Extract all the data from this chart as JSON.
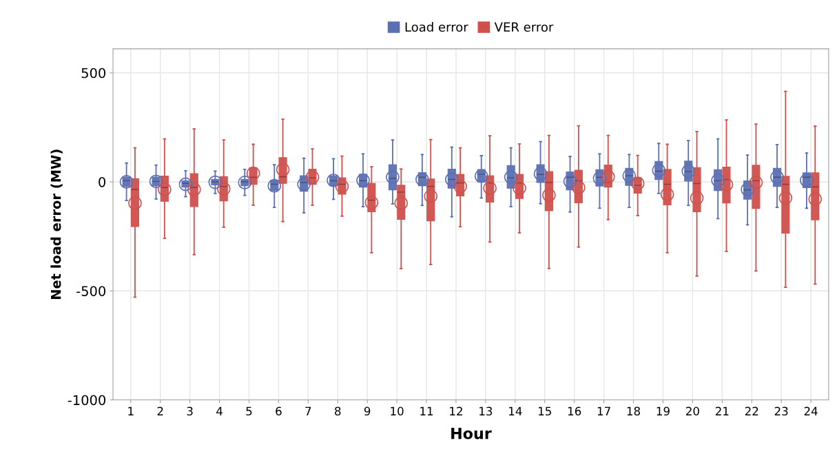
{
  "chart_data": {
    "type": "box",
    "xlabel": "Hour",
    "ylabel": "Net load error (MW)",
    "categories": [
      "1",
      "2",
      "3",
      "4",
      "5",
      "6",
      "7",
      "8",
      "9",
      "10",
      "11",
      "12",
      "13",
      "14",
      "15",
      "16",
      "17",
      "18",
      "19",
      "20",
      "21",
      "22",
      "23",
      "24"
    ],
    "ylim": [
      -1000,
      610
    ],
    "yticks": [
      -1000,
      -500,
      0,
      500
    ],
    "grid": true,
    "legend": "top",
    "series": [
      {
        "name": "Load error",
        "color": "#5b6fb3",
        "boxes": [
          {
            "low": -86,
            "q1": -21,
            "median": 5,
            "q3": 21,
            "high": 86,
            "mean": 0
          },
          {
            "low": -79,
            "q1": -18,
            "median": 2,
            "q3": 21,
            "high": 77,
            "mean": 2
          },
          {
            "low": -68,
            "q1": -24,
            "median": -7,
            "q3": 5,
            "high": 51,
            "mean": -11
          },
          {
            "low": -53,
            "q1": -14,
            "median": 0,
            "q3": 11,
            "high": 49,
            "mean": -2
          },
          {
            "low": -62,
            "q1": -18,
            "median": 0,
            "q3": 11,
            "high": 57,
            "mean": -3
          },
          {
            "low": -117,
            "q1": -39,
            "median": -11,
            "q3": 7,
            "high": 78,
            "mean": -18
          },
          {
            "low": -142,
            "q1": -43,
            "median": -3,
            "q3": 28,
            "high": 108,
            "mean": -11
          },
          {
            "low": -80,
            "q1": -18,
            "median": 5,
            "q3": 28,
            "high": 106,
            "mean": 7
          },
          {
            "low": -114,
            "q1": -24,
            "median": 5,
            "q3": 35,
            "high": 128,
            "mean": 7
          },
          {
            "low": -101,
            "q1": -37,
            "median": 16,
            "q3": 78,
            "high": 192,
            "mean": 21
          },
          {
            "low": -108,
            "q1": -18,
            "median": 21,
            "q3": 42,
            "high": 125,
            "mean": 11
          },
          {
            "low": -160,
            "q1": -29,
            "median": 11,
            "q3": 58,
            "high": 159,
            "mean": 11
          },
          {
            "low": -74,
            "q1": 0,
            "median": 35,
            "q3": 56,
            "high": 120,
            "mean": 26
          },
          {
            "low": -114,
            "q1": -29,
            "median": 19,
            "q3": 74,
            "high": 156,
            "mean": 21
          },
          {
            "low": -100,
            "q1": -3,
            "median": 34,
            "q3": 78,
            "high": 184,
            "mean": 37
          },
          {
            "low": -138,
            "q1": -37,
            "median": 21,
            "q3": 45,
            "high": 116,
            "mean": 2
          },
          {
            "low": -121,
            "q1": -19,
            "median": 21,
            "q3": 55,
            "high": 128,
            "mean": 16
          },
          {
            "low": -117,
            "q1": -16,
            "median": 28,
            "q3": 62,
            "high": 125,
            "mean": 28
          },
          {
            "low": -53,
            "q1": 11,
            "median": 49,
            "q3": 93,
            "high": 176,
            "mean": 53
          },
          {
            "low": -108,
            "q1": 4,
            "median": 47,
            "q3": 95,
            "high": 189,
            "mean": 49
          },
          {
            "low": -169,
            "q1": -40,
            "median": 5,
            "q3": 55,
            "high": 197,
            "mean": 7
          },
          {
            "low": -197,
            "q1": -79,
            "median": -37,
            "q3": 4,
            "high": 123,
            "mean": -35
          },
          {
            "low": -117,
            "q1": -21,
            "median": 21,
            "q3": 62,
            "high": 171,
            "mean": 21
          },
          {
            "low": -121,
            "q1": -26,
            "median": 21,
            "q3": 41,
            "high": 132,
            "mean": 7
          }
        ]
      },
      {
        "name": "VER error",
        "color": "#d0504c",
        "boxes": [
          {
            "low": -529,
            "q1": -205,
            "median": -35,
            "q3": 14,
            "high": 156,
            "mean": -97
          },
          {
            "low": -259,
            "q1": -89,
            "median": -26,
            "q3": 26,
            "high": 197,
            "mean": -35
          },
          {
            "low": -334,
            "q1": -113,
            "median": -26,
            "q3": 37,
            "high": 243,
            "mean": -35
          },
          {
            "low": -208,
            "q1": -87,
            "median": -21,
            "q3": 24,
            "high": 192,
            "mean": -32
          },
          {
            "low": -107,
            "q1": -11,
            "median": 21,
            "q3": 65,
            "high": 172,
            "mean": 39
          },
          {
            "low": -182,
            "q1": -7,
            "median": 23,
            "q3": 111,
            "high": 288,
            "mean": 56
          },
          {
            "low": -107,
            "q1": -11,
            "median": 18,
            "q3": 58,
            "high": 151,
            "mean": 21
          },
          {
            "low": -157,
            "q1": -56,
            "median": -11,
            "q3": 18,
            "high": 118,
            "mean": -21
          },
          {
            "low": -325,
            "q1": -137,
            "median": -84,
            "q3": -7,
            "high": 69,
            "mean": -95
          },
          {
            "low": -398,
            "q1": -172,
            "median": -47,
            "q3": -16,
            "high": 59,
            "mean": -98
          },
          {
            "low": -379,
            "q1": -179,
            "median": -21,
            "q3": 13,
            "high": 194,
            "mean": -66
          },
          {
            "low": -206,
            "q1": -64,
            "median": -5,
            "q3": 34,
            "high": 156,
            "mean": -21
          },
          {
            "low": -276,
            "q1": -93,
            "median": -5,
            "q3": 28,
            "high": 211,
            "mean": -29
          },
          {
            "low": -234,
            "q1": -76,
            "median": -5,
            "q3": 34,
            "high": 174,
            "mean": -29
          },
          {
            "low": -397,
            "q1": -132,
            "median": -3,
            "q3": 47,
            "high": 213,
            "mean": -61
          },
          {
            "low": -299,
            "q1": -96,
            "median": 5,
            "q3": 53,
            "high": 257,
            "mean": -26
          },
          {
            "low": -173,
            "q1": -24,
            "median": -3,
            "q3": 77,
            "high": 213,
            "mean": 23
          },
          {
            "low": -155,
            "q1": -52,
            "median": -16,
            "q3": 18,
            "high": 121,
            "mean": -7
          },
          {
            "low": -325,
            "q1": -105,
            "median": -11,
            "q3": 57,
            "high": 172,
            "mean": -58
          },
          {
            "low": -432,
            "q1": -137,
            "median": -8,
            "q3": 65,
            "high": 231,
            "mean": -74
          },
          {
            "low": -319,
            "q1": -97,
            "median": 11,
            "q3": 67,
            "high": 284,
            "mean": -13
          },
          {
            "low": -409,
            "q1": -122,
            "median": 5,
            "q3": 76,
            "high": 265,
            "mean": -3
          },
          {
            "low": -484,
            "q1": -235,
            "median": -11,
            "q3": 25,
            "high": 415,
            "mean": -74
          },
          {
            "low": -469,
            "q1": -174,
            "median": -23,
            "q3": 41,
            "high": 255,
            "mean": -79
          }
        ]
      }
    ]
  }
}
